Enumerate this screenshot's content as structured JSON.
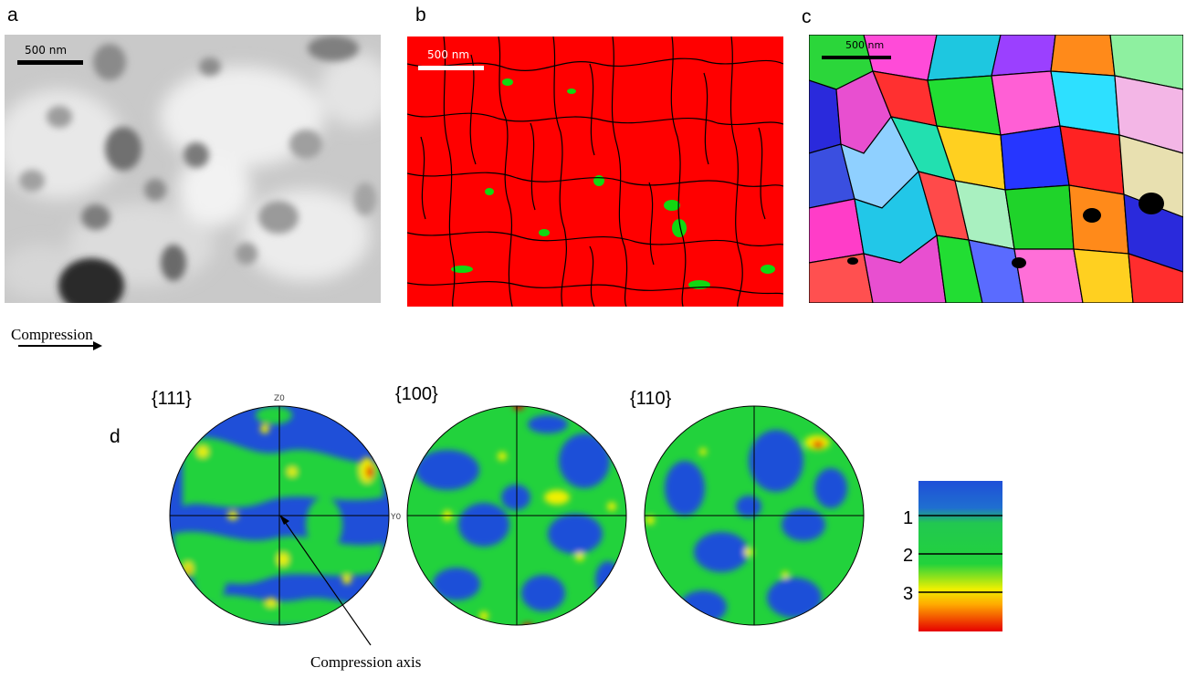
{
  "panels": {
    "a": {
      "letter": "a",
      "scale": "500 nm"
    },
    "b": {
      "letter": "b",
      "scale": "500 nm"
    },
    "c": {
      "letter": "c",
      "scale": "500 nm"
    },
    "d": {
      "letter": "d"
    }
  },
  "compression_label": "Compression",
  "pole_figures": [
    {
      "label": "{111}",
      "axis_top": "Z0",
      "axis_right": "Y0"
    },
    {
      "label": "{100}"
    },
    {
      "label": "{110}"
    }
  ],
  "compression_axis_label": "Compression axis",
  "colorbar": {
    "ticks": [
      "1",
      "2",
      "3"
    ]
  },
  "colors": {
    "phase_red": "#ff0000",
    "phase_green": "#00e000",
    "pf_blue": "#1f4fd8",
    "pf_green": "#22d23c",
    "pf_yellow": "#f0f000",
    "pf_red": "#e60000"
  }
}
